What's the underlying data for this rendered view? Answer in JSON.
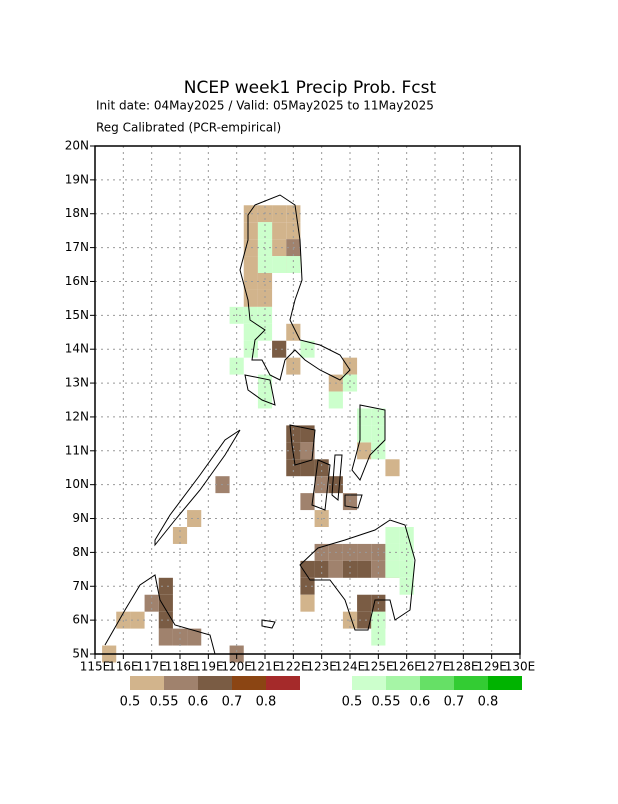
{
  "chart_data": {
    "type": "grid-map",
    "title": "NCEP week1 Precip Prob. Fcst",
    "subtitle": "Init date: 04May2025 / Valid: 05May2025 to 11May2025",
    "note": "Reg Calibrated (PCR-empirical)",
    "xlim": [
      115,
      130
    ],
    "ylim": [
      5,
      20
    ],
    "xticks": [
      {
        "value": 115,
        "label": "115E"
      },
      {
        "value": 116,
        "label": "116E"
      },
      {
        "value": 117,
        "label": "117E"
      },
      {
        "value": 118,
        "label": "118E"
      },
      {
        "value": 119,
        "label": "119E"
      },
      {
        "value": 120,
        "label": "120E"
      },
      {
        "value": 121,
        "label": "121E"
      },
      {
        "value": 122,
        "label": "122E"
      },
      {
        "value": 123,
        "label": "123E"
      },
      {
        "value": 124,
        "label": "124E"
      },
      {
        "value": 125,
        "label": "125E"
      },
      {
        "value": 126,
        "label": "126E"
      },
      {
        "value": 127,
        "label": "127E"
      },
      {
        "value": 128,
        "label": "128E"
      },
      {
        "value": 129,
        "label": "129E"
      },
      {
        "value": 130,
        "label": "130E"
      }
    ],
    "yticks": [
      {
        "value": 5,
        "label": "5N"
      },
      {
        "value": 6,
        "label": "6N"
      },
      {
        "value": 7,
        "label": "7N"
      },
      {
        "value": 8,
        "label": "8N"
      },
      {
        "value": 9,
        "label": "9N"
      },
      {
        "value": 10,
        "label": "10N"
      },
      {
        "value": 11,
        "label": "11N"
      },
      {
        "value": 12,
        "label": "12N"
      },
      {
        "value": 13,
        "label": "13N"
      },
      {
        "value": 14,
        "label": "14N"
      },
      {
        "value": 15,
        "label": "15N"
      },
      {
        "value": 16,
        "label": "16N"
      },
      {
        "value": 17,
        "label": "17N"
      },
      {
        "value": 18,
        "label": "18N"
      },
      {
        "value": 19,
        "label": "19N"
      },
      {
        "value": 20,
        "label": "20N"
      }
    ],
    "grid": true,
    "cell_size": 0.5,
    "series": [
      {
        "colors": [
          "#d2b48c",
          "#a0826d",
          "#7a5c44",
          "#8b4513",
          "#a52a2a"
        ],
        "levels": [
          0.5,
          0.55,
          0.6,
          0.7,
          0.8
        ],
        "lon": [
          120.5,
          121,
          121.5,
          122,
          120.5,
          121.5,
          122,
          120.5,
          121.5,
          122,
          120.5,
          122,
          120.5,
          121,
          120.5,
          121,
          122,
          121.5,
          122,
          123.5,
          124,
          124.5,
          122,
          122.5,
          122,
          122.5,
          122,
          122.5,
          123,
          123,
          123.5,
          122.5,
          124,
          125.5,
          123,
          119.5,
          118.5,
          118,
          123,
          123.5,
          124,
          124.5,
          125,
          123,
          123.5,
          124,
          124.5,
          125,
          125.5,
          122.5,
          122.5,
          122.5,
          124.5,
          125,
          124.5,
          125,
          124,
          117.5,
          117.5,
          117.5,
          117.5,
          117,
          116.5,
          116,
          118,
          118.5,
          115.5,
          120
        ],
        "lat": [
          18,
          18,
          18,
          18,
          17.5,
          17.5,
          17.5,
          17,
          17,
          17,
          16.5,
          16.5,
          16,
          16,
          15.5,
          15.5,
          14.5,
          14,
          13.5,
          13,
          13.5,
          11,
          11.5,
          11.5,
          11,
          11,
          10.5,
          10.5,
          10.5,
          10,
          10,
          9.5,
          9.5,
          10.5,
          9,
          10,
          9,
          8.5,
          8,
          8,
          8,
          8,
          8,
          7.5,
          7.5,
          7.5,
          7.5,
          7.5,
          7.5,
          7.5,
          7,
          6.5,
          6.5,
          6.5,
          6,
          6,
          6,
          7,
          6.5,
          6,
          5.5,
          6.5,
          6,
          6,
          5.5,
          5.5,
          5,
          5
        ],
        "values": [
          0.52,
          0.52,
          0.52,
          0.52,
          0.52,
          0.52,
          0.52,
          0.52,
          0.52,
          0.57,
          0.52,
          0.52,
          0.52,
          0.52,
          0.52,
          0.52,
          0.52,
          0.65,
          0.52,
          0.52,
          0.52,
          0.52,
          0.65,
          0.65,
          0.65,
          0.57,
          0.65,
          0.65,
          0.65,
          0.57,
          0.65,
          0.57,
          0.57,
          0.52,
          0.52,
          0.57,
          0.52,
          0.52,
          0.57,
          0.57,
          0.57,
          0.57,
          0.57,
          0.65,
          0.57,
          0.65,
          0.65,
          0.57,
          0.52,
          0.65,
          0.65,
          0.52,
          0.65,
          0.65,
          0.65,
          0.57,
          0.52,
          0.65,
          0.65,
          0.65,
          0.57,
          0.57,
          0.52,
          0.52,
          0.57,
          0.57,
          0.52,
          0.57
        ]
      },
      {
        "colors": [
          "#ccffcc",
          "#a6f5a6",
          "#66e066",
          "#33cc33",
          "#00b300"
        ],
        "levels": [
          0.5,
          0.55,
          0.6,
          0.7,
          0.8
        ],
        "lon": [
          121,
          121,
          121,
          121.5,
          122,
          120,
          120.5,
          121,
          120.5,
          121,
          120.5,
          120,
          121,
          121,
          122.5,
          124,
          123.5,
          124.5,
          125,
          124.5,
          125,
          125,
          125.5,
          126,
          125.5,
          126,
          125.5,
          126,
          126,
          125,
          125
        ],
        "lat": [
          17.5,
          17,
          16.5,
          16.5,
          16.5,
          15,
          15,
          15,
          14.5,
          14.5,
          14,
          13.5,
          13,
          12.5,
          14,
          13,
          12.5,
          12,
          12,
          11.5,
          11.5,
          11,
          8.5,
          8.5,
          8,
          8,
          7.5,
          7.5,
          7,
          5.5,
          6
        ],
        "values": [
          0.52,
          0.52,
          0.52,
          0.52,
          0.52,
          0.52,
          0.52,
          0.52,
          0.52,
          0.52,
          0.52,
          0.52,
          0.52,
          0.52,
          0.52,
          0.52,
          0.52,
          0.52,
          0.52,
          0.52,
          0.52,
          0.52,
          0.52,
          0.52,
          0.52,
          0.52,
          0.52,
          0.52,
          0.52,
          0.52,
          0.52
        ]
      }
    ]
  }
}
